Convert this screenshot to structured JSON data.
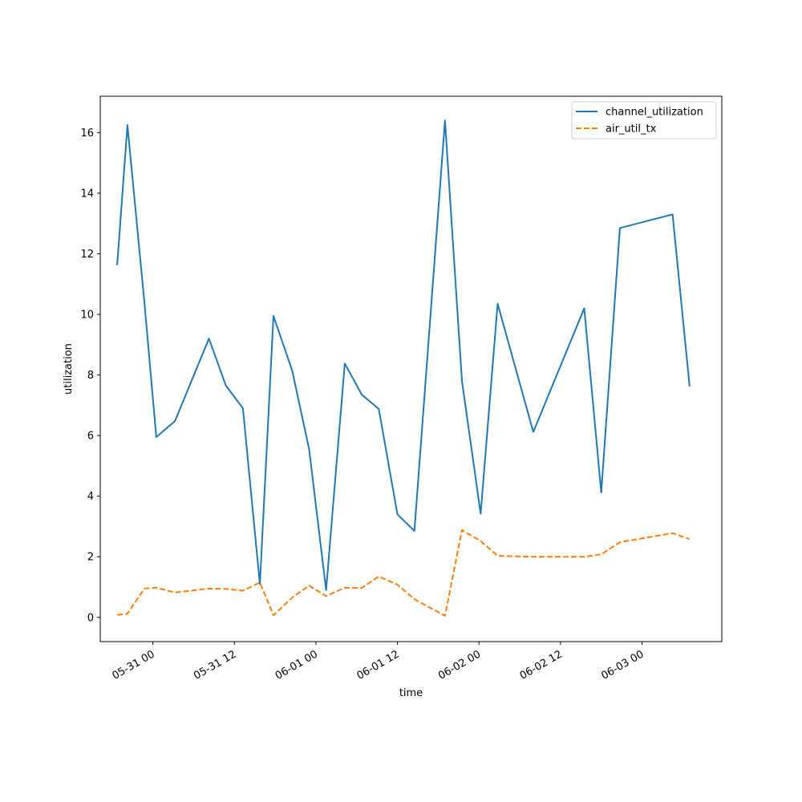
{
  "chart_data": {
    "type": "line",
    "title": "",
    "xlabel": "time",
    "ylabel": "utilization",
    "x_tick_labels": [
      "05-31 00",
      "05-31 12",
      "06-01 00",
      "06-01 12",
      "06-02 00",
      "06-02 12",
      "06-03 00"
    ],
    "y_tick_labels": [
      "0",
      "2",
      "4",
      "6",
      "8",
      "10",
      "12",
      "14",
      "16"
    ],
    "x_range": [
      "2024-05-30T16:15",
      "2024-06-03T11:45"
    ],
    "ylim": [
      -0.8,
      17.2
    ],
    "grid": false,
    "legend_position": "top-right",
    "series": [
      {
        "name": "channel_utilization",
        "color": "#1f77b4",
        "style": "solid",
        "points": [
          [
            "2024-05-30T18:45",
            11.65
          ],
          [
            "2024-05-30T20:15",
            16.25
          ],
          [
            "2024-05-30T22:45",
            10.4
          ],
          [
            "2024-05-31T00:30",
            5.95
          ],
          [
            "2024-05-31T03:15",
            6.48
          ],
          [
            "2024-05-31T08:15",
            9.2
          ],
          [
            "2024-05-31T10:45",
            7.65
          ],
          [
            "2024-05-31T13:15",
            6.9
          ],
          [
            "2024-05-31T15:45",
            1.1
          ],
          [
            "2024-05-31T17:45",
            9.95
          ],
          [
            "2024-05-31T20:30",
            8.15
          ],
          [
            "2024-05-31T23:00",
            5.55
          ],
          [
            "2024-06-01T01:30",
            0.9
          ],
          [
            "2024-06-01T04:15",
            8.38
          ],
          [
            "2024-06-01T06:45",
            7.35
          ],
          [
            "2024-06-01T09:15",
            6.88
          ],
          [
            "2024-06-01T12:00",
            3.4
          ],
          [
            "2024-06-01T14:30",
            2.85
          ],
          [
            "2024-06-01T19:00",
            16.4
          ],
          [
            "2024-06-01T21:30",
            7.8
          ],
          [
            "2024-06-02T00:15",
            3.42
          ],
          [
            "2024-06-02T02:45",
            10.35
          ],
          [
            "2024-06-02T08:00",
            6.12
          ],
          [
            "2024-06-02T15:30",
            10.2
          ],
          [
            "2024-06-02T18:00",
            4.12
          ],
          [
            "2024-06-02T20:45",
            12.85
          ],
          [
            "2024-06-03T04:30",
            13.3
          ],
          [
            "2024-06-03T07:00",
            7.65
          ]
        ]
      },
      {
        "name": "air_util_tx",
        "color": "#ff7f0e",
        "style": "dashed",
        "points": [
          [
            "2024-05-30T18:45",
            0.08
          ],
          [
            "2024-05-30T20:15",
            0.12
          ],
          [
            "2024-05-30T22:45",
            0.95
          ],
          [
            "2024-05-31T00:30",
            0.98
          ],
          [
            "2024-05-31T03:15",
            0.82
          ],
          [
            "2024-05-31T08:15",
            0.95
          ],
          [
            "2024-05-31T10:45",
            0.94
          ],
          [
            "2024-05-31T13:15",
            0.88
          ],
          [
            "2024-05-31T15:45",
            1.15
          ],
          [
            "2024-05-31T17:45",
            0.07
          ],
          [
            "2024-05-31T20:30",
            0.65
          ],
          [
            "2024-05-31T23:00",
            1.05
          ],
          [
            "2024-06-01T01:30",
            0.7
          ],
          [
            "2024-06-01T04:15",
            0.98
          ],
          [
            "2024-06-01T06:45",
            0.97
          ],
          [
            "2024-06-01T09:15",
            1.35
          ],
          [
            "2024-06-01T12:00",
            1.08
          ],
          [
            "2024-06-01T14:30",
            0.6
          ],
          [
            "2024-06-01T19:00",
            0.05
          ],
          [
            "2024-06-01T21:30",
            2.88
          ],
          [
            "2024-06-02T00:15",
            2.52
          ],
          [
            "2024-06-02T02:45",
            2.03
          ],
          [
            "2024-06-02T08:00",
            2.0
          ],
          [
            "2024-06-02T15:30",
            2.0
          ],
          [
            "2024-06-02T18:00",
            2.08
          ],
          [
            "2024-06-02T20:45",
            2.48
          ],
          [
            "2024-06-03T04:30",
            2.78
          ],
          [
            "2024-06-03T07:00",
            2.58
          ]
        ]
      }
    ]
  }
}
